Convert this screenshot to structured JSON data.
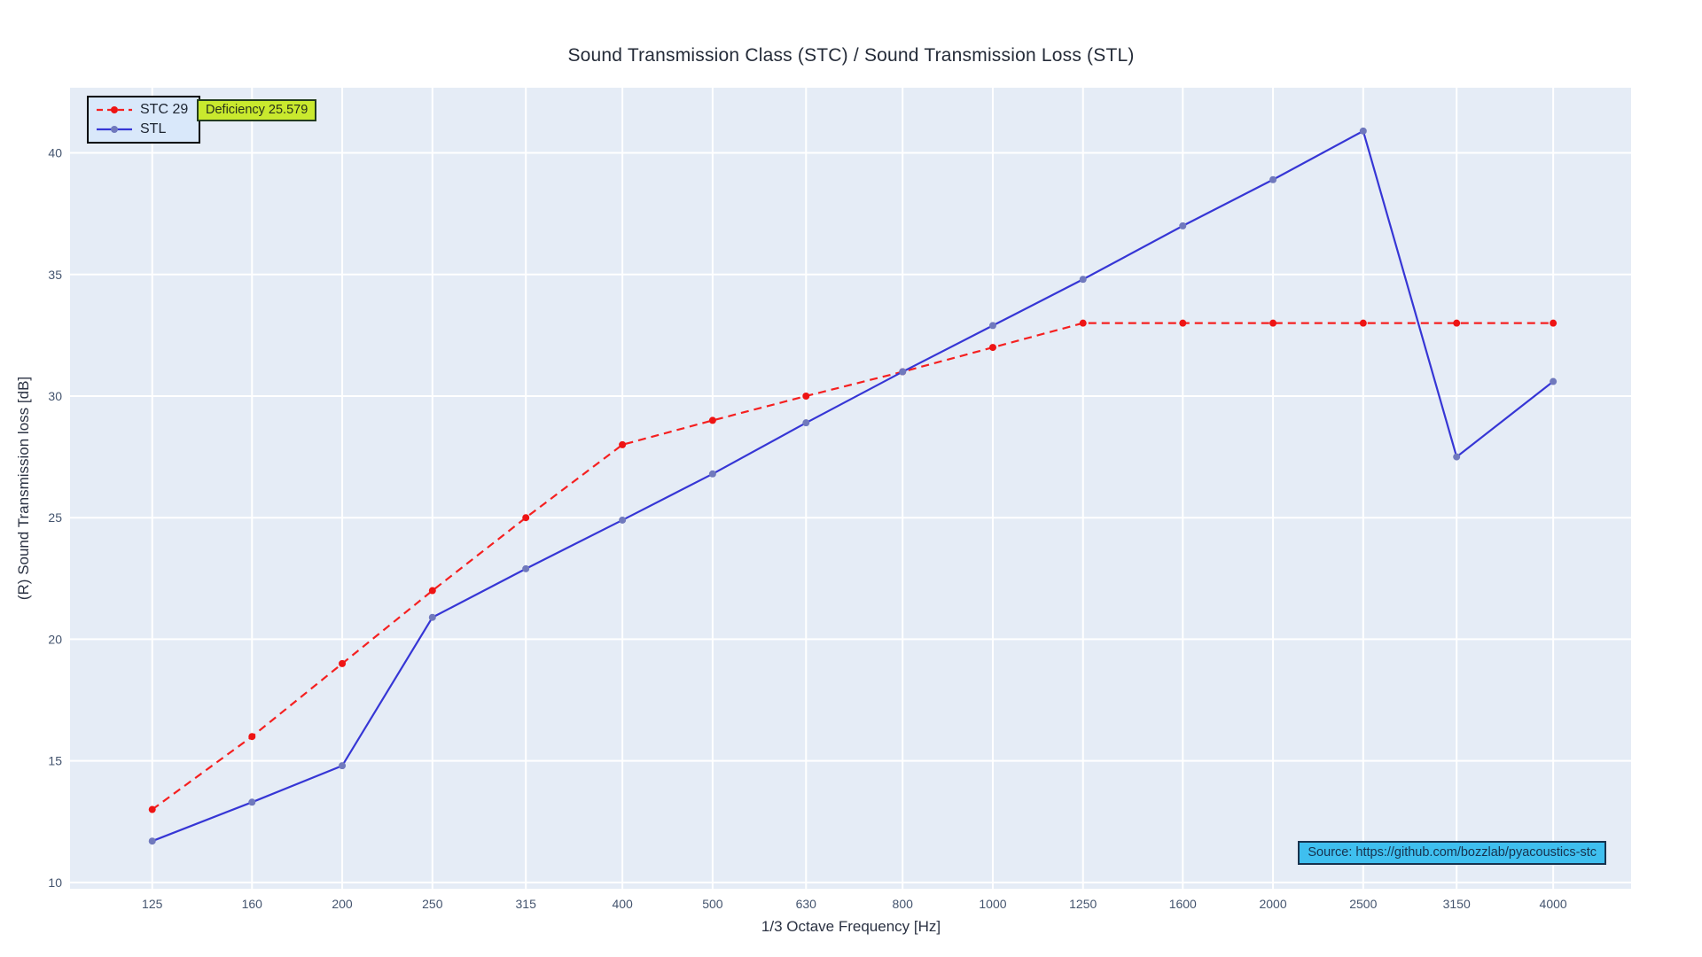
{
  "chart_data": {
    "type": "line",
    "title": "Sound Transmission Class (STC) / Sound Transmission Loss (STL)",
    "xlabel": "1/3 Octave Frequency [Hz]",
    "ylabel": "(R) Sound Transmission loss [dB]",
    "x_scale": "log",
    "grid": true,
    "legend_position": "top-left",
    "x_ticks": [
      125,
      160,
      200,
      250,
      315,
      400,
      500,
      630,
      800,
      1000,
      1250,
      1600,
      2000,
      2500,
      3150,
      4000
    ],
    "y_ticks": [
      10,
      15,
      20,
      25,
      30,
      35,
      40
    ],
    "x_range_hz": [
      102,
      4850
    ],
    "y_range_db": [
      9.74,
      42.68
    ],
    "series": [
      {
        "name": "STC 29",
        "style": "dashed",
        "color": "#f52020",
        "marker_color": "#ee1414",
        "values": [
          13,
          16,
          19,
          22,
          25,
          28,
          29,
          30,
          31,
          32,
          33,
          33,
          33,
          33,
          33,
          33
        ]
      },
      {
        "name": "STL",
        "style": "solid",
        "color": "#3636d5",
        "marker_color": "#7079bd",
        "values": [
          11.7,
          13.3,
          14.8,
          20.9,
          22.9,
          24.9,
          26.8,
          28.9,
          31.0,
          32.9,
          34.8,
          37.0,
          38.9,
          40.9,
          27.5,
          30.6
        ]
      }
    ]
  },
  "annotations": {
    "deficiency": "Deficiency 25.579",
    "source": "Source: https://github.com/bozzlab/pyacoustics-stc"
  },
  "colors": {
    "plot_bg": "#e5ecf6",
    "grid": "#ffffff",
    "tick_text": "#44546e"
  }
}
